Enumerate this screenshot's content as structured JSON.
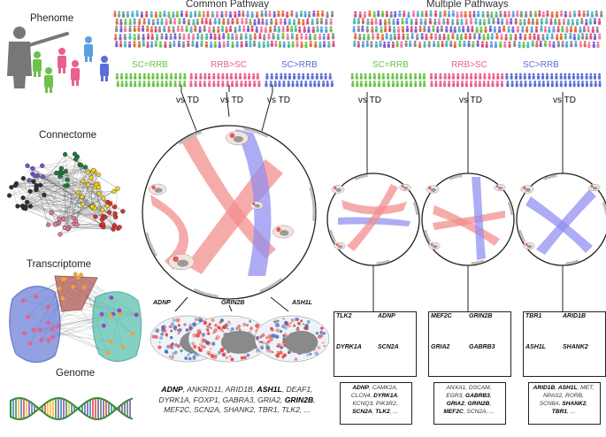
{
  "labels": {
    "phenome": "Phenome",
    "connectome": "Connectome",
    "transcriptome": "Transcriptome",
    "genome": "Genome",
    "common_pathway": "Common Pathway",
    "multiple_pathways": "Multiple Pathways",
    "vs_td": "vs TD"
  },
  "groups": [
    {
      "label": "SC=RRB",
      "color": "#6cc24a"
    },
    {
      "label": "RRB>SC",
      "color": "#e8608e"
    },
    {
      "label": "SC>RRB",
      "color": "#5c6fd6"
    }
  ],
  "common": {
    "genes": [
      "ADNP",
      "GRIN2B",
      "ASH1L"
    ],
    "gene_list": [
      {
        "text": "ADNP",
        "bold": true
      },
      {
        "text": ", ANKRD11, ARID1B, ",
        "bold": false
      },
      {
        "text": "ASH1L",
        "bold": true
      },
      {
        "text": ", DEAF1,",
        "bold": false
      },
      {
        "br": true
      },
      {
        "text": "DYRK1A, FOXP1, GABRA3, GRIA2, ",
        "bold": false
      },
      {
        "text": "GRIN2B",
        "bold": true
      },
      {
        "text": ",",
        "bold": false
      },
      {
        "br": true
      },
      {
        "text": "MEF2C, SCN2A, SHANK2, TBR1, TLK2, ...",
        "bold": false
      }
    ]
  },
  "multiple": [
    {
      "genes": [
        "TLK2",
        "ADNP",
        "DYRK1A",
        "SCN2A"
      ],
      "gene_list": [
        {
          "text": "ADNP",
          "bold": true
        },
        {
          "text": ", CAMK2A,",
          "bold": false
        },
        {
          "br": true
        },
        {
          "text": "CLCN4, ",
          "bold": false
        },
        {
          "text": "DYRK1A",
          "bold": true
        },
        {
          "text": ",",
          "bold": false
        },
        {
          "br": true
        },
        {
          "text": "KCNQ3, PIK3R2,",
          "bold": false
        },
        {
          "br": true
        },
        {
          "text": "SCN2A",
          "bold": true
        },
        {
          "text": ", ",
          "bold": false
        },
        {
          "text": "TLK2",
          "bold": true
        },
        {
          "text": ", ...",
          "bold": false
        }
      ]
    },
    {
      "genes": [
        "MEF2C",
        "GRIN2B",
        "GRIA2",
        "GABRB3"
      ],
      "gene_list": [
        {
          "text": "ANXA1, DSCAM,",
          "bold": false
        },
        {
          "br": true
        },
        {
          "text": "EGR3, ",
          "bold": false
        },
        {
          "text": "GABRB3",
          "bold": true
        },
        {
          "text": ",",
          "bold": false
        },
        {
          "br": true
        },
        {
          "text": "GRIA2",
          "bold": true
        },
        {
          "text": ", ",
          "bold": false
        },
        {
          "text": "GRIN2B",
          "bold": true
        },
        {
          "text": ",",
          "bold": false
        },
        {
          "br": true
        },
        {
          "text": "MEF2C",
          "bold": true
        },
        {
          "text": ", SCN2A, ...",
          "bold": false
        }
      ]
    },
    {
      "genes": [
        "TBR1",
        "ARID1B",
        "ASH1L",
        "SHANK2"
      ],
      "gene_list": [
        {
          "text": "ARID1B",
          "bold": true
        },
        {
          "text": ", ",
          "bold": false
        },
        {
          "text": "ASH1L",
          "bold": true
        },
        {
          "text": ", MET,",
          "bold": false
        },
        {
          "br": true
        },
        {
          "text": "NPAS2, RORB,",
          "bold": false
        },
        {
          "br": true
        },
        {
          "text": "SCN8A, ",
          "bold": false
        },
        {
          "text": "SHANK2",
          "bold": true
        },
        {
          "text": ",",
          "bold": false
        },
        {
          "br": true
        },
        {
          "text": "TBR1",
          "bold": true
        },
        {
          "text": ", ...",
          "bold": false
        }
      ]
    }
  ],
  "colors": {
    "positive": "#e8352f",
    "negative": "#3b6fb6",
    "ribbon_red": "#f28b8b",
    "ribbon_blue": "#8f8cf0",
    "crowd": [
      "#d94f7c",
      "#5aa0e0",
      "#6cc24a",
      "#7a5fd1",
      "#f07aa0",
      "#4fb7b0",
      "#8a8a8a",
      "#e26c3c"
    ]
  }
}
